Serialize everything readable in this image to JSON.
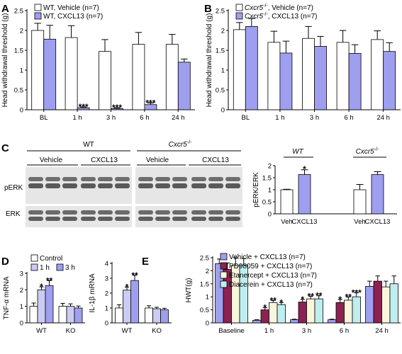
{
  "colors": {
    "white_bar": "#ffffff",
    "purple": "#9f9ff0",
    "light_purple": "#cbcbf3",
    "maroon": "#8b2252",
    "cream": "#fbf5dc",
    "cyan": "#bfeef0",
    "axis": "#000000"
  },
  "blot": {
    "letter": "C",
    "wt": "WT",
    "ko_prefix": "Cxcr5",
    "ko_sup": "-/-",
    "vehicle": "Vehicle",
    "cxcl13": "CXCL13",
    "perk": "pERK",
    "erk": "ERK"
  },
  "chart_data": [
    {
      "id": "A",
      "type": "bar",
      "title": "",
      "ylabel": "Head withdrawal threshold (g)",
      "ylim": [
        0,
        2.5
      ],
      "yticks": [
        "0",
        "0.5",
        "1",
        "1.5",
        "2",
        "2.5"
      ],
      "categories": [
        "BL",
        "1 h",
        "3 h",
        "6 h",
        "24 h"
      ],
      "series": [
        {
          "name": "WT, Vehicle (n=7)",
          "color": "#ffffff",
          "values": [
            2.0,
            1.82,
            1.47,
            1.65,
            1.65
          ],
          "errors": [
            0.18,
            0.3,
            0.3,
            0.3,
            0.25
          ]
        },
        {
          "name": "WT, CXCL13 (n=7)",
          "color": "#9f9ff0",
          "values": [
            1.78,
            0.05,
            0.03,
            0.13,
            1.2
          ],
          "errors": [
            0.35,
            0.02,
            0.02,
            0.04,
            0.08
          ]
        }
      ],
      "annotations": [
        {
          "category": "1 h",
          "text": "***"
        },
        {
          "category": "3 h",
          "text": "***"
        },
        {
          "category": "6 h",
          "text": "***"
        }
      ]
    },
    {
      "id": "B",
      "type": "bar",
      "title": "",
      "ylabel": "Head withdrawal threshold (g)",
      "ylim": [
        0,
        2.5
      ],
      "yticks": [
        "0",
        "0.5",
        "1",
        "1.5",
        "2",
        "2.5"
      ],
      "categories": [
        "BL",
        "1 h",
        "3 h",
        "6 h",
        "24 h"
      ],
      "legend_prefix": "Cxcr5",
      "legend_sup": "-/-",
      "series": [
        {
          "name": ", Vehicle (n=7)",
          "color": "#ffffff",
          "values": [
            2.02,
            1.7,
            1.8,
            1.7,
            1.77
          ],
          "errors": [
            0.18,
            0.28,
            0.3,
            0.3,
            0.22
          ]
        },
        {
          "name": ", CXCL13 (n=7)",
          "color": "#9f9ff0",
          "values": [
            2.1,
            1.43,
            1.6,
            1.42,
            1.47
          ],
          "errors": [
            0.2,
            0.3,
            0.25,
            0.22,
            0.22
          ]
        }
      ],
      "annotations": []
    },
    {
      "id": "C-right",
      "type": "bar",
      "ylabel": "pERK/ERK",
      "ylim": [
        0,
        2
      ],
      "yticks": [
        "0",
        "0.5",
        "1",
        "1.5",
        "2"
      ],
      "group_labels": [
        "WT",
        "Cxcr5"
      ],
      "group_sup": "-/-",
      "categories": [
        "Veh",
        "CXCL13",
        "Veh",
        "CXCL13"
      ],
      "values": [
        1.0,
        1.63,
        1.0,
        1.63
      ],
      "errors": [
        0.02,
        0.2,
        0.22,
        0.12
      ],
      "colors": [
        "#ffffff",
        "#9f9ff0",
        "#ffffff",
        "#9f9ff0"
      ],
      "annotations": [
        {
          "index": 1,
          "text": "*"
        }
      ]
    },
    {
      "id": "D-left",
      "type": "bar",
      "letter": "D",
      "ylabel_prefix": "TNF-",
      "ylabel_greek": "α",
      "ylabel_suffix": " mRNA",
      "ylim": [
        0,
        3
      ],
      "yticks": [
        "0",
        "1",
        "2",
        "3"
      ],
      "categories": [
        "WT",
        "KO"
      ],
      "series": [
        {
          "name": "Control",
          "color": "#ffffff",
          "values": [
            1.0,
            1.0
          ],
          "errors": [
            0.2,
            0.18
          ]
        },
        {
          "name": "1 h",
          "color": "#cbcbf3",
          "values": [
            2.0,
            1.0
          ],
          "errors": [
            0.18,
            0.15
          ]
        },
        {
          "name": "3 h",
          "color": "#9f9ff0",
          "values": [
            2.25,
            0.9
          ],
          "errors": [
            0.3,
            0.12
          ]
        }
      ],
      "annotations": [
        {
          "category": "WT",
          "series": 1,
          "text": "*"
        },
        {
          "category": "WT",
          "series": 2,
          "text": "**"
        }
      ]
    },
    {
      "id": "D-right",
      "type": "bar",
      "ylabel_prefix": "IL-1",
      "ylabel_greek": "β",
      "ylabel_suffix": " mRNA",
      "ylim": [
        0,
        4
      ],
      "yticks": [
        "0",
        "1",
        "2",
        "3",
        "4"
      ],
      "categories": [
        "WT",
        "KO"
      ],
      "series": [
        {
          "name": "Control",
          "color": "#ffffff",
          "values": [
            1.0,
            1.0
          ],
          "errors": [
            0.22,
            0.15
          ]
        },
        {
          "name": "1 h",
          "color": "#cbcbf3",
          "values": [
            2.2,
            0.95
          ],
          "errors": [
            0.2,
            0.1
          ]
        },
        {
          "name": "3 h",
          "color": "#9f9ff0",
          "values": [
            2.85,
            0.88
          ],
          "errors": [
            0.35,
            0.1
          ]
        }
      ],
      "annotations": [
        {
          "category": "WT",
          "series": 1,
          "text": "*"
        },
        {
          "category": "WT",
          "series": 2,
          "text": "**"
        }
      ]
    },
    {
      "id": "E",
      "type": "bar",
      "letter": "E",
      "ylabel": "HWT(g)",
      "ylim": [
        0,
        2.5
      ],
      "yticks": [
        "0",
        "0.5",
        "1",
        "1.5",
        "2",
        "2.5"
      ],
      "categories": [
        "Baseline",
        "1 h",
        "3 h",
        "6 h",
        "24 h"
      ],
      "series": [
        {
          "name": "Vehicle + CXCL13 (n=7)",
          "color": "#9f9ff0",
          "values": [
            2.27,
            0.1,
            0.12,
            0.12,
            1.4
          ],
          "errors": [
            0.18,
            0.02,
            0.02,
            0.02,
            0.2
          ]
        },
        {
          "name": "PD98059 + CXCL13 (n=7)",
          "color": "#8b2252",
          "values": [
            2.05,
            0.5,
            0.8,
            0.78,
            1.6
          ],
          "errors": [
            0.25,
            0.08,
            0.1,
            0.12,
            0.2
          ]
        },
        {
          "name": "Etanercept + CXCL13 (n=7)",
          "color": "#fbf5dc",
          "values": [
            2.2,
            0.78,
            0.92,
            0.87,
            1.38
          ],
          "errors": [
            0.3,
            0.08,
            0.1,
            0.12,
            0.22
          ]
        },
        {
          "name": "Diacerein + CXCL13 (n=7)",
          "color": "#bfeef0",
          "values": [
            2.22,
            0.7,
            0.92,
            1.0,
            1.5
          ],
          "errors": [
            0.25,
            0.08,
            0.12,
            0.15,
            0.3
          ]
        }
      ],
      "annotations": [
        {
          "category": "1 h",
          "series": 1,
          "text": "*"
        },
        {
          "category": "1 h",
          "series": 2,
          "text": "**"
        },
        {
          "category": "1 h",
          "series": 3,
          "text": "*"
        },
        {
          "category": "3 h",
          "series": 1,
          "text": "*"
        },
        {
          "category": "3 h",
          "series": 2,
          "text": "**"
        },
        {
          "category": "3 h",
          "series": 3,
          "text": "**"
        },
        {
          "category": "6 h",
          "series": 1,
          "text": "*"
        },
        {
          "category": "6 h",
          "series": 2,
          "text": "**"
        },
        {
          "category": "6 h",
          "series": 3,
          "text": "***"
        }
      ]
    }
  ]
}
